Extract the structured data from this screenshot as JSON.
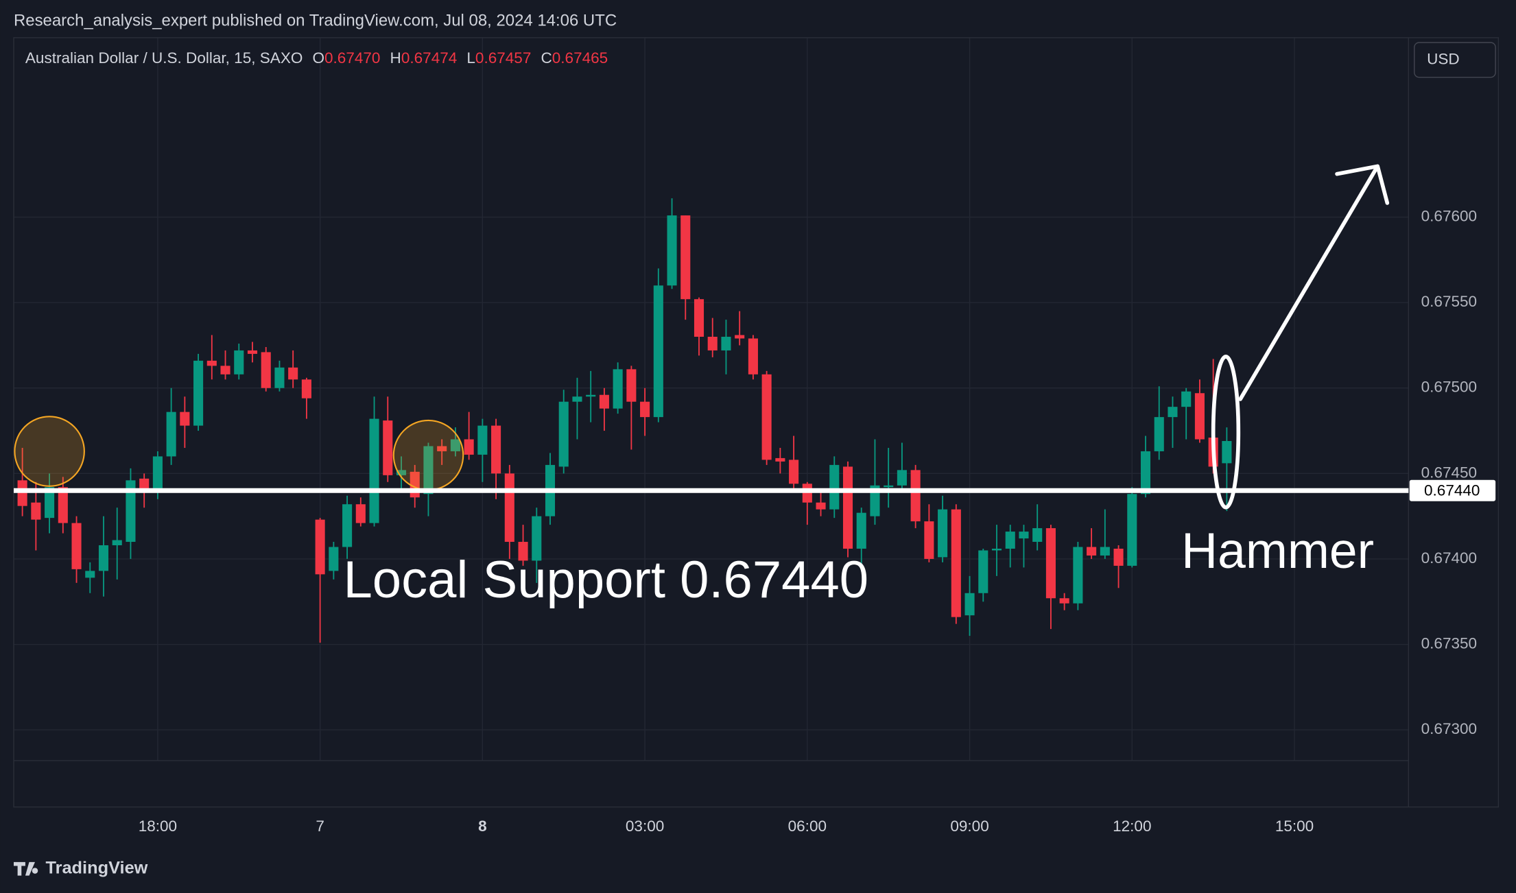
{
  "chart_data": {
    "type": "candlestick",
    "title": "Research_analysis_expert published on TradingView.com, Jul 08, 2024 14:06 UTC",
    "symbol": "Australian Dollar / U.S. Dollar, 15, SAXO",
    "legend_ohlc": [
      {
        "label": "O",
        "value": "0.67470"
      },
      {
        "label": "H",
        "value": "0.67474"
      },
      {
        "label": "L",
        "value": "0.67457"
      },
      {
        "label": "C",
        "value": "0.67465"
      }
    ],
    "currency": "USD",
    "brand": "TradingView",
    "up_color": "#089981",
    "down_color": "#f23645",
    "open": [
      0.67446,
      0.67433,
      0.67424,
      0.67442,
      0.67421,
      0.67389,
      0.67393,
      0.67408,
      0.6741,
      0.67447,
      0.67441,
      0.6746,
      0.67486,
      0.67478,
      0.67516,
      0.67513,
      0.67508,
      0.67522,
      0.67521,
      0.675,
      0.67512,
      0.67505,
      0.67423,
      0.67393,
      0.67407,
      0.67432,
      0.67421,
      0.67481,
      0.67449,
      0.67451,
      0.67438,
      0.67466,
      0.67463,
      0.6747,
      0.67461,
      0.67478,
      0.6745,
      0.6741,
      0.67399,
      0.67425,
      0.67454,
      0.67492,
      0.67495,
      0.67496,
      0.67488,
      0.67511,
      0.67492,
      0.67483,
      0.6756,
      0.67601,
      0.67552,
      0.6753,
      0.67522,
      0.67531,
      0.67529,
      0.67508,
      0.67459,
      0.67458,
      0.67444,
      0.67433,
      0.67429,
      0.67454,
      0.67406,
      0.67425,
      0.67442,
      0.67443,
      0.67452,
      0.67422,
      0.67401,
      0.67429,
      0.67367,
      0.6738,
      0.67405,
      0.67406,
      0.67412,
      0.6741,
      0.67418,
      0.67377,
      0.67374,
      0.67407,
      0.67402,
      0.67406,
      0.67396,
      0.67438,
      0.67463,
      0.67483,
      0.67489,
      0.67497,
      0.67471,
      0.67456
    ],
    "high": [
      0.67465,
      0.67445,
      0.6745,
      0.67448,
      0.67425,
      0.67398,
      0.67425,
      0.6743,
      0.67453,
      0.6745,
      0.67463,
      0.675,
      0.67495,
      0.6752,
      0.67531,
      0.67522,
      0.67526,
      0.67527,
      0.67524,
      0.67516,
      0.67522,
      0.67506,
      0.67424,
      0.6741,
      0.67437,
      0.67436,
      0.67495,
      0.67495,
      0.6746,
      0.67455,
      0.67468,
      0.6747,
      0.67477,
      0.67486,
      0.67482,
      0.67482,
      0.67455,
      0.6742,
      0.6743,
      0.67462,
      0.67499,
      0.67506,
      0.6751,
      0.675,
      0.67515,
      0.67513,
      0.675,
      0.6757,
      0.67611,
      0.67601,
      0.67553,
      0.67541,
      0.6754,
      0.67545,
      0.67531,
      0.6751,
      0.67465,
      0.67472,
      0.67445,
      0.6744,
      0.6746,
      0.67457,
      0.6743,
      0.6747,
      0.67465,
      0.67468,
      0.67455,
      0.67432,
      0.67437,
      0.67432,
      0.6739,
      0.67406,
      0.6742,
      0.6742,
      0.6742,
      0.67432,
      0.6742,
      0.6738,
      0.6741,
      0.67418,
      0.67429,
      0.67408,
      0.67442,
      0.67472,
      0.67501,
      0.67495,
      0.675,
      0.67505,
      0.67517,
      0.67477
    ],
    "low": [
      0.67425,
      0.67405,
      0.67415,
      0.67415,
      0.67386,
      0.6738,
      0.67378,
      0.67388,
      0.674,
      0.6743,
      0.67435,
      0.67455,
      0.67465,
      0.67475,
      0.67505,
      0.67505,
      0.67505,
      0.67515,
      0.67498,
      0.67498,
      0.675,
      0.67482,
      0.67351,
      0.67388,
      0.674,
      0.67419,
      0.67419,
      0.67445,
      0.6744,
      0.6743,
      0.67425,
      0.67455,
      0.6746,
      0.67458,
      0.67445,
      0.67435,
      0.674,
      0.67396,
      0.67386,
      0.6742,
      0.6745,
      0.6747,
      0.6748,
      0.67475,
      0.67485,
      0.67464,
      0.67472,
      0.6748,
      0.67558,
      0.6754,
      0.67519,
      0.67518,
      0.67508,
      0.67525,
      0.67505,
      0.67455,
      0.6745,
      0.6744,
      0.6742,
      0.67425,
      0.67424,
      0.67401,
      0.67396,
      0.6742,
      0.6743,
      0.6744,
      0.67418,
      0.67398,
      0.67398,
      0.67362,
      0.67355,
      0.67375,
      0.6739,
      0.67395,
      0.67395,
      0.67405,
      0.67359,
      0.6737,
      0.6737,
      0.674,
      0.674,
      0.67383,
      0.67395,
      0.67436,
      0.67458,
      0.67465,
      0.6747,
      0.67468,
      0.6745,
      0.67428
    ],
    "close": [
      0.67431,
      0.67423,
      0.67442,
      0.67421,
      0.67394,
      0.67393,
      0.67408,
      0.67411,
      0.67446,
      0.67441,
      0.6746,
      0.67486,
      0.67478,
      0.67516,
      0.67513,
      0.67508,
      0.67522,
      0.6752,
      0.675,
      0.67512,
      0.67505,
      0.67494,
      0.67391,
      0.67407,
      0.67432,
      0.67421,
      0.67482,
      0.67449,
      0.67452,
      0.67436,
      0.67466,
      0.67463,
      0.6747,
      0.67461,
      0.67478,
      0.6745,
      0.6741,
      0.67399,
      0.67425,
      0.67455,
      0.67492,
      0.67495,
      0.67496,
      0.67488,
      0.67511,
      0.67492,
      0.67483,
      0.6756,
      0.67601,
      0.67552,
      0.6753,
      0.67522,
      0.6753,
      0.67529,
      0.67508,
      0.67458,
      0.67457,
      0.67444,
      0.67433,
      0.67429,
      0.67455,
      0.67406,
      0.67427,
      0.67443,
      0.67443,
      0.67452,
      0.67422,
      0.674,
      0.67429,
      0.67366,
      0.6738,
      0.67405,
      0.67406,
      0.67416,
      0.67416,
      0.67418,
      0.67377,
      0.67374,
      0.67407,
      0.67402,
      0.67407,
      0.67396,
      0.67438,
      0.67463,
      0.67483,
      0.67489,
      0.67498,
      0.6747,
      0.67454,
      0.67469
    ],
    "xlim": [
      -0.64,
      102.43
    ],
    "xticks": [
      {
        "value": 10,
        "label": "18:00"
      },
      {
        "value": 22,
        "label": "7"
      },
      {
        "value": 34,
        "label": "8"
      },
      {
        "value": 46,
        "label": "03:00"
      },
      {
        "value": 58,
        "label": "06:00"
      },
      {
        "value": 70,
        "label": "09:00"
      },
      {
        "value": 82,
        "label": "12:00"
      },
      {
        "value": 94,
        "label": "15:00"
      }
    ],
    "ylim": [
      0.67282,
      0.67705
    ],
    "yticks": [
      {
        "value": 0.673,
        "label": "0.67300"
      },
      {
        "value": 0.6735,
        "label": "0.67350"
      },
      {
        "value": 0.674,
        "label": "0.67400"
      },
      {
        "value": 0.6745,
        "label": "0.67450"
      },
      {
        "value": 0.675,
        "label": "0.67500"
      },
      {
        "value": 0.6755,
        "label": "0.67550"
      },
      {
        "value": 0.676,
        "label": "0.67600"
      }
    ],
    "grid": true,
    "support": {
      "value": 0.6744,
      "label": "0.67440"
    },
    "annotations": [
      "Local Support 0.67440",
      "Hammer"
    ]
  }
}
